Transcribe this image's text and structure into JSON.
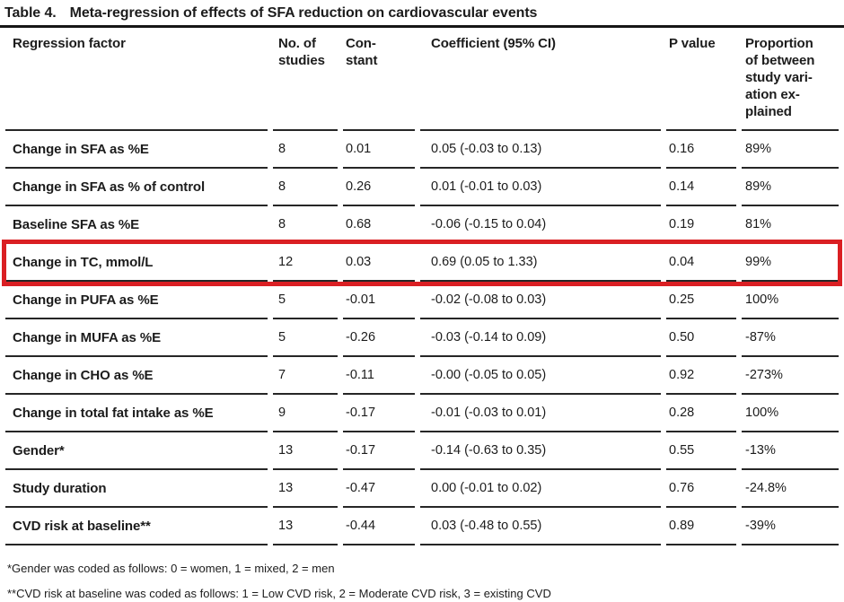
{
  "title": {
    "label": "Table 4.",
    "text": "Meta-regression of effects of SFA reduction on cardiovascular events"
  },
  "table": {
    "columns": [
      {
        "label": "Regression factor"
      },
      {
        "label": "No. of\nstudies"
      },
      {
        "label": "Con-\nstant"
      },
      {
        "label": "Coefficient (95% CI)"
      },
      {
        "label": "P value"
      },
      {
        "label": "Proportion\nof between\nstudy vari-\nation ex-\nplained"
      }
    ],
    "rows": [
      {
        "cells": [
          "Change in SFA as %E",
          "8",
          "0.01",
          "0.05 (-0.03 to 0.13)",
          "0.16",
          "89%"
        ],
        "highlighted": false
      },
      {
        "cells": [
          "Change in SFA as % of control",
          "8",
          "0.26",
          "0.01 (-0.01 to 0.03)",
          "0.14",
          "89%"
        ],
        "highlighted": false
      },
      {
        "cells": [
          "Baseline SFA as %E",
          "8",
          "0.68",
          "-0.06 (-0.15 to 0.04)",
          "0.19",
          "81%"
        ],
        "highlighted": false
      },
      {
        "cells": [
          "Change in TC, mmol/L",
          "12",
          "0.03",
          "0.69 (0.05 to 1.33)",
          "0.04",
          "99%"
        ],
        "highlighted": true
      },
      {
        "cells": [
          "Change in PUFA as %E",
          "5",
          "-0.01",
          "-0.02 (-0.08 to 0.03)",
          "0.25",
          "100%"
        ],
        "highlighted": false
      },
      {
        "cells": [
          "Change in MUFA as %E",
          "5",
          "-0.26",
          "-0.03 (-0.14 to 0.09)",
          "0.50",
          "-87%"
        ],
        "highlighted": false
      },
      {
        "cells": [
          "Change in CHO as %E",
          "7",
          "-0.11",
          "-0.00 (-0.05 to 0.05)",
          "0.92",
          "-273%"
        ],
        "highlighted": false
      },
      {
        "cells": [
          "Change in total fat intake as %E",
          "9",
          "-0.17",
          "-0.01 (-0.03 to 0.01)",
          "0.28",
          "100%"
        ],
        "highlighted": false
      },
      {
        "cells": [
          "Gender*",
          "13",
          "-0.17",
          "-0.14 (-0.63 to 0.35)",
          "0.55",
          "-13%"
        ],
        "highlighted": false
      },
      {
        "cells": [
          "Study duration",
          "13",
          "-0.47",
          "0.00 (-0.01 to 0.02)",
          "0.76",
          "-24.8%"
        ],
        "highlighted": false
      },
      {
        "cells": [
          "CVD risk at baseline**",
          "13",
          "-0.44",
          "0.03 (-0.48 to 0.55)",
          "0.89",
          "-39%"
        ],
        "highlighted": false
      }
    ]
  },
  "highlight": {
    "color": "#da1f23"
  },
  "footnotes": [
    "*Gender was coded as follows: 0 = women, 1 = mixed, 2 = men",
    "**CVD risk at baseline was coded as follows: 1 = Low CVD risk, 2 = Moderate CVD risk, 3 = existing CVD"
  ]
}
